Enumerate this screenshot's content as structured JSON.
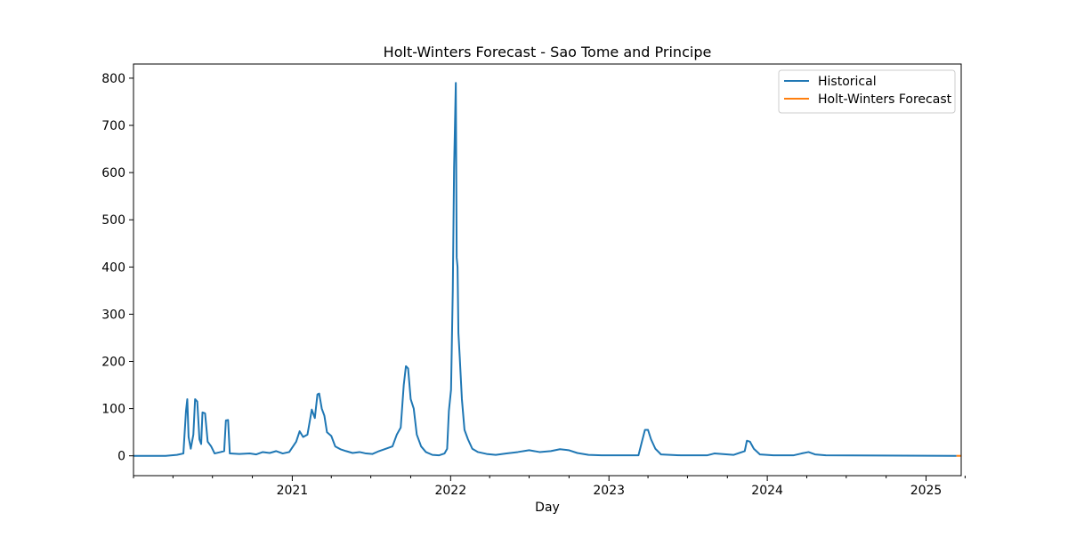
{
  "chart_data": {
    "type": "line",
    "title": "Holt-Winters Forecast - Sao Tome and Principe",
    "xlabel": "Day",
    "ylabel": "",
    "xlim": [
      "2020-01-01",
      "2025-03-23"
    ],
    "ylim": [
      -42,
      830
    ],
    "x_ticks": [
      {
        "date": "2021-01-01",
        "label": "2021"
      },
      {
        "date": "2022-01-01",
        "label": "2022"
      },
      {
        "date": "2023-01-01",
        "label": "2023"
      },
      {
        "date": "2024-01-01",
        "label": "2024"
      },
      {
        "date": "2025-01-01",
        "label": "2025"
      }
    ],
    "x_minor_ticks": [
      "2020-01-01",
      "2020-04-01",
      "2020-07-01",
      "2020-10-01",
      "2021-04-01",
      "2021-07-01",
      "2021-10-01",
      "2022-04-01",
      "2022-07-01",
      "2022-10-01",
      "2023-04-01",
      "2023-07-01",
      "2023-10-01",
      "2024-04-01",
      "2024-07-01",
      "2024-10-01",
      "2025-04-01"
    ],
    "y_ticks": [
      0,
      100,
      200,
      300,
      400,
      500,
      600,
      700,
      800
    ],
    "grid": false,
    "legend_position": "top-right",
    "series": [
      {
        "name": "Historical",
        "color": "#1f77b4",
        "points": [
          [
            "2020-01-01",
            0
          ],
          [
            "2020-03-15",
            0
          ],
          [
            "2020-04-10",
            2
          ],
          [
            "2020-04-25",
            5
          ],
          [
            "2020-05-01",
            95
          ],
          [
            "2020-05-04",
            120
          ],
          [
            "2020-05-07",
            40
          ],
          [
            "2020-05-12",
            15
          ],
          [
            "2020-05-18",
            45
          ],
          [
            "2020-05-22",
            120
          ],
          [
            "2020-05-27",
            115
          ],
          [
            "2020-06-01",
            35
          ],
          [
            "2020-06-05",
            25
          ],
          [
            "2020-06-08",
            92
          ],
          [
            "2020-06-14",
            90
          ],
          [
            "2020-06-20",
            30
          ],
          [
            "2020-06-28",
            20
          ],
          [
            "2020-07-06",
            5
          ],
          [
            "2020-07-20",
            8
          ],
          [
            "2020-07-28",
            10
          ],
          [
            "2020-08-01",
            75
          ],
          [
            "2020-08-06",
            76
          ],
          [
            "2020-08-10",
            5
          ],
          [
            "2020-09-01",
            4
          ],
          [
            "2020-09-25",
            5
          ],
          [
            "2020-10-10",
            3
          ],
          [
            "2020-10-25",
            8
          ],
          [
            "2020-11-10",
            6
          ],
          [
            "2020-11-25",
            10
          ],
          [
            "2020-12-10",
            5
          ],
          [
            "2020-12-25",
            8
          ],
          [
            "2021-01-10",
            30
          ],
          [
            "2021-01-18",
            52
          ],
          [
            "2021-01-26",
            40
          ],
          [
            "2021-02-05",
            45
          ],
          [
            "2021-02-15",
            98
          ],
          [
            "2021-02-22",
            80
          ],
          [
            "2021-02-28",
            130
          ],
          [
            "2021-03-04",
            132
          ],
          [
            "2021-03-10",
            100
          ],
          [
            "2021-03-16",
            85
          ],
          [
            "2021-03-22",
            50
          ],
          [
            "2021-04-01",
            42
          ],
          [
            "2021-04-10",
            20
          ],
          [
            "2021-04-22",
            14
          ],
          [
            "2021-05-05",
            10
          ],
          [
            "2021-05-20",
            6
          ],
          [
            "2021-06-05",
            8
          ],
          [
            "2021-06-20",
            5
          ],
          [
            "2021-07-05",
            4
          ],
          [
            "2021-07-20",
            10
          ],
          [
            "2021-08-05",
            15
          ],
          [
            "2021-08-20",
            20
          ],
          [
            "2021-08-30",
            45
          ],
          [
            "2021-09-08",
            60
          ],
          [
            "2021-09-15",
            150
          ],
          [
            "2021-09-20",
            190
          ],
          [
            "2021-09-25",
            185
          ],
          [
            "2021-10-01",
            120
          ],
          [
            "2021-10-08",
            100
          ],
          [
            "2021-10-15",
            45
          ],
          [
            "2021-10-25",
            20
          ],
          [
            "2021-11-05",
            8
          ],
          [
            "2021-11-20",
            2
          ],
          [
            "2021-12-05",
            1
          ],
          [
            "2021-12-18",
            5
          ],
          [
            "2021-12-24",
            15
          ],
          [
            "2021-12-28",
            95
          ],
          [
            "2022-01-02",
            140
          ],
          [
            "2022-01-06",
            350
          ],
          [
            "2022-01-09",
            610
          ],
          [
            "2022-01-11",
            700
          ],
          [
            "2022-01-13",
            790
          ],
          [
            "2022-01-15",
            420
          ],
          [
            "2022-01-17",
            400
          ],
          [
            "2022-01-19",
            260
          ],
          [
            "2022-01-22",
            210
          ],
          [
            "2022-01-27",
            120
          ],
          [
            "2022-02-02",
            55
          ],
          [
            "2022-02-10",
            35
          ],
          [
            "2022-02-20",
            15
          ],
          [
            "2022-03-05",
            8
          ],
          [
            "2022-03-25",
            4
          ],
          [
            "2022-04-15",
            2
          ],
          [
            "2022-05-10",
            5
          ],
          [
            "2022-06-05",
            8
          ],
          [
            "2022-07-01",
            12
          ],
          [
            "2022-07-25",
            8
          ],
          [
            "2022-08-20",
            10
          ],
          [
            "2022-09-10",
            14
          ],
          [
            "2022-09-30",
            12
          ],
          [
            "2022-10-20",
            6
          ],
          [
            "2022-11-15",
            2
          ],
          [
            "2022-12-15",
            1
          ],
          [
            "2023-02-15",
            1
          ],
          [
            "2023-03-10",
            1
          ],
          [
            "2023-03-18",
            30
          ],
          [
            "2023-03-25",
            55
          ],
          [
            "2023-04-01",
            55
          ],
          [
            "2023-04-08",
            35
          ],
          [
            "2023-04-18",
            15
          ],
          [
            "2023-05-01",
            3
          ],
          [
            "2023-06-15",
            1
          ],
          [
            "2023-08-15",
            1
          ],
          [
            "2023-09-01",
            5
          ],
          [
            "2023-10-15",
            2
          ],
          [
            "2023-11-10",
            10
          ],
          [
            "2023-11-15",
            32
          ],
          [
            "2023-11-22",
            30
          ],
          [
            "2023-12-01",
            15
          ],
          [
            "2023-12-15",
            3
          ],
          [
            "2024-01-15",
            1
          ],
          [
            "2024-03-01",
            1
          ],
          [
            "2024-03-20",
            5
          ],
          [
            "2024-04-05",
            8
          ],
          [
            "2024-04-20",
            3
          ],
          [
            "2024-05-15",
            1
          ],
          [
            "2025-03-12",
            0
          ]
        ]
      },
      {
        "name": "Holt-Winters Forecast",
        "color": "#ff7f0e",
        "points": [
          [
            "2025-03-12",
            0
          ],
          [
            "2025-03-23",
            0
          ]
        ]
      }
    ]
  }
}
